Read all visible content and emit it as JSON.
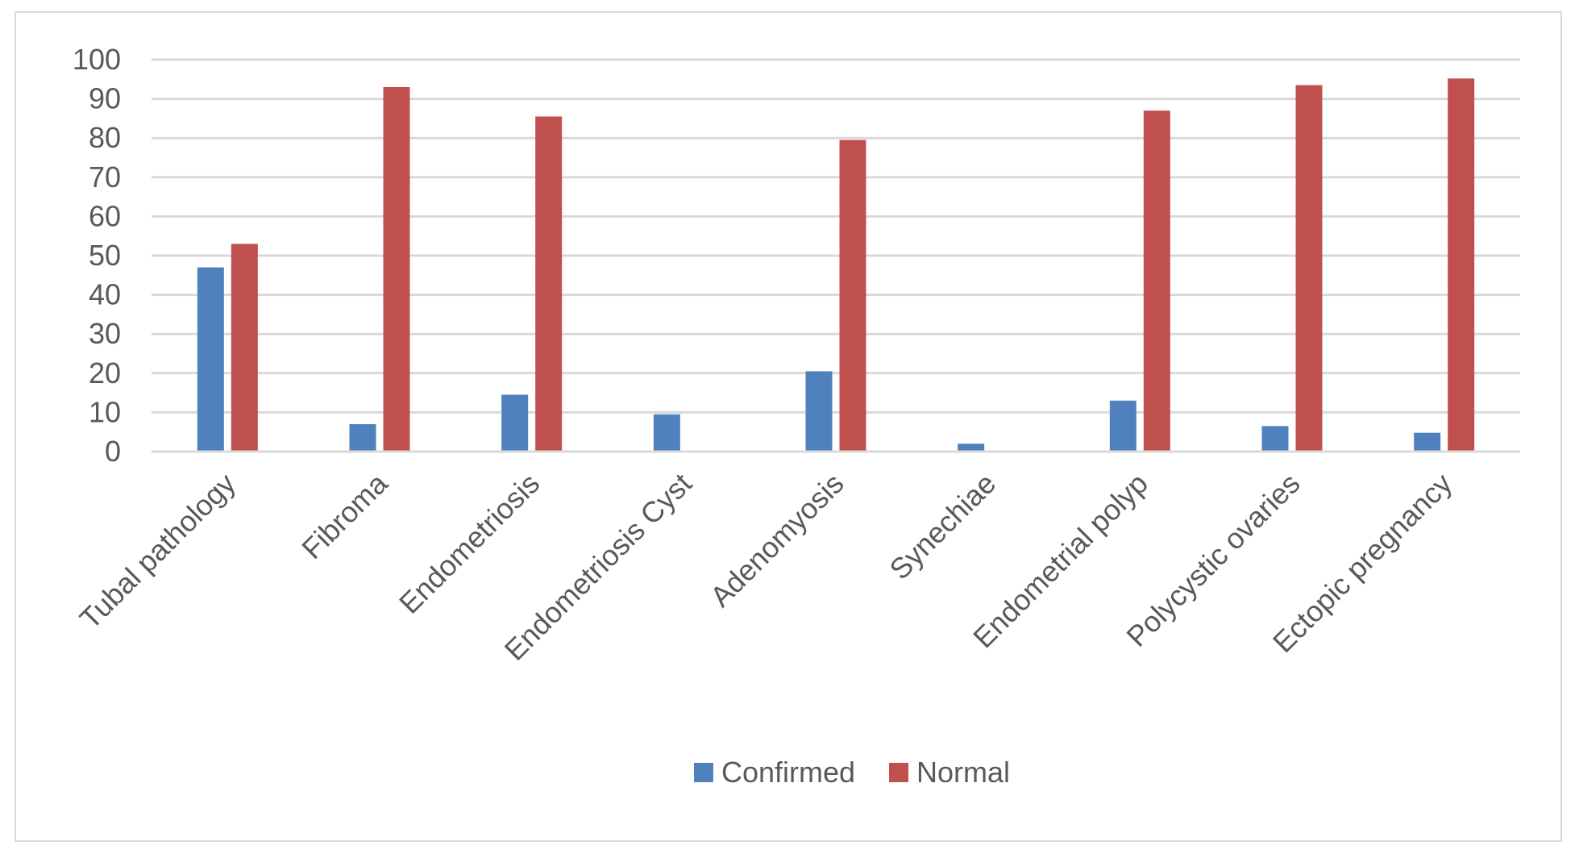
{
  "chart_data": {
    "type": "bar",
    "categories": [
      "Tubal pathology",
      "Fibroma",
      "Endometriosis",
      "Endometriosis Cyst",
      "Adenomyosis",
      "Synechiae",
      "Endometrial polyp",
      "Polycystic ovaries",
      "Ectopic pregnancy"
    ],
    "series": [
      {
        "name": "Confirmed",
        "color": "#4f81bd",
        "values": [
          47,
          7,
          14.5,
          9.5,
          20.5,
          2,
          13,
          6.5,
          4.8
        ]
      },
      {
        "name": "Normal",
        "color": "#c0504d",
        "values": [
          53,
          93,
          85.5,
          0,
          79.5,
          0,
          87,
          93.5,
          95.2
        ]
      }
    ],
    "yticks": [
      "0",
      "10",
      "20",
      "30",
      "40",
      "50",
      "60",
      "70",
      "80",
      "90",
      "100"
    ],
    "ylim": [
      0,
      100
    ],
    "grid": true,
    "legend_position": "bottom"
  }
}
